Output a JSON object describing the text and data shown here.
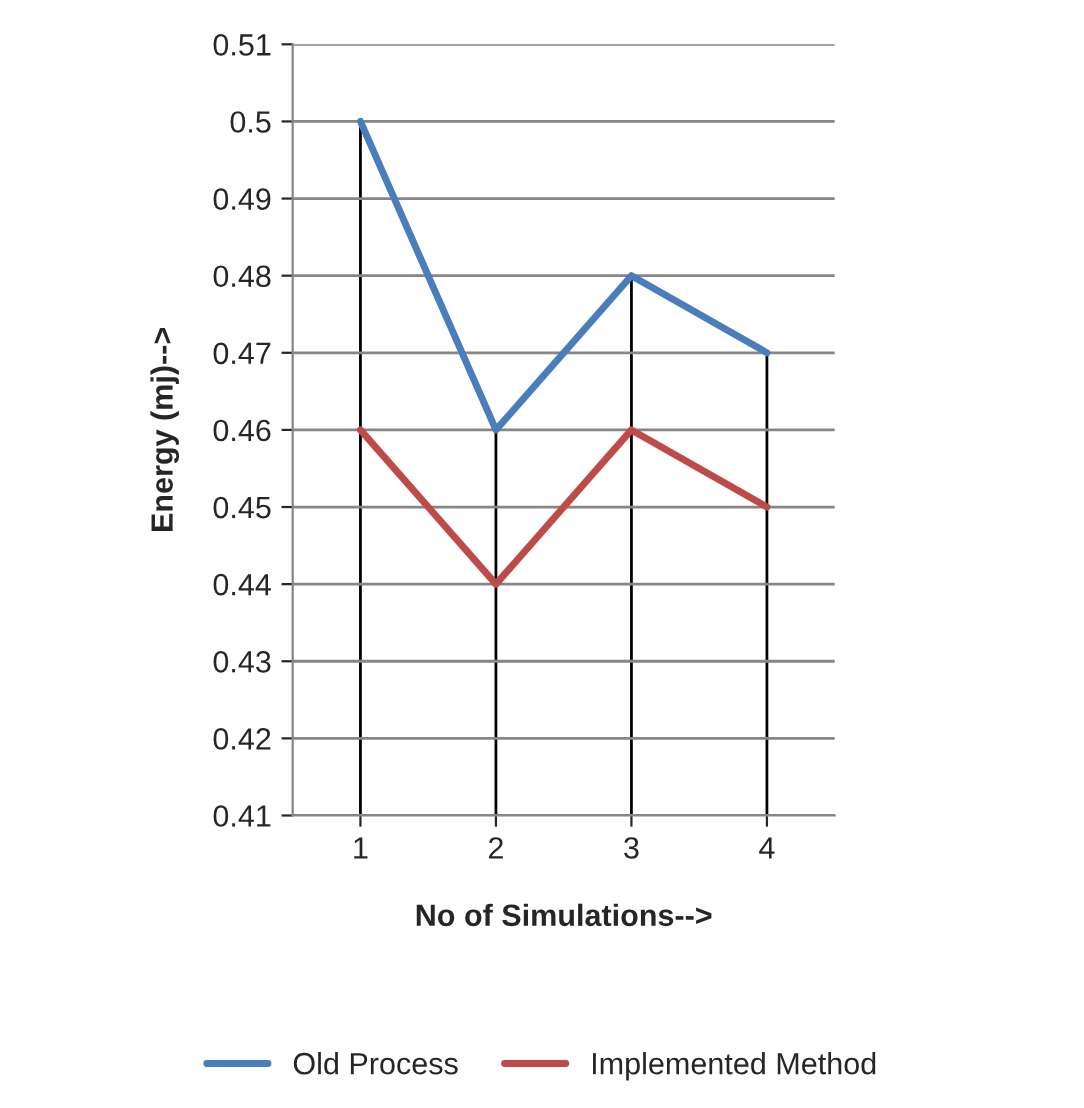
{
  "chart_data": {
    "type": "line",
    "xlabel": "No of Simulations-->",
    "ylabel": "Energy (mj)-->",
    "categories": [
      "1",
      "2",
      "3",
      "4"
    ],
    "series": [
      {
        "name": "Old Process",
        "color": "#4a7ebb",
        "values": [
          0.5,
          0.46,
          0.48,
          0.47
        ]
      },
      {
        "name": "Implemented Method",
        "color": "#be4b48",
        "values": [
          0.46,
          0.44,
          0.46,
          0.45
        ]
      }
    ],
    "ylim": [
      0.41,
      0.51
    ],
    "yticks": [
      0.41,
      0.42,
      0.43,
      0.44,
      0.45,
      0.46,
      0.47,
      0.48,
      0.49,
      0.5,
      0.51
    ],
    "grid": true,
    "legend": "bottom",
    "marker": "none",
    "line_style": "solid"
  }
}
